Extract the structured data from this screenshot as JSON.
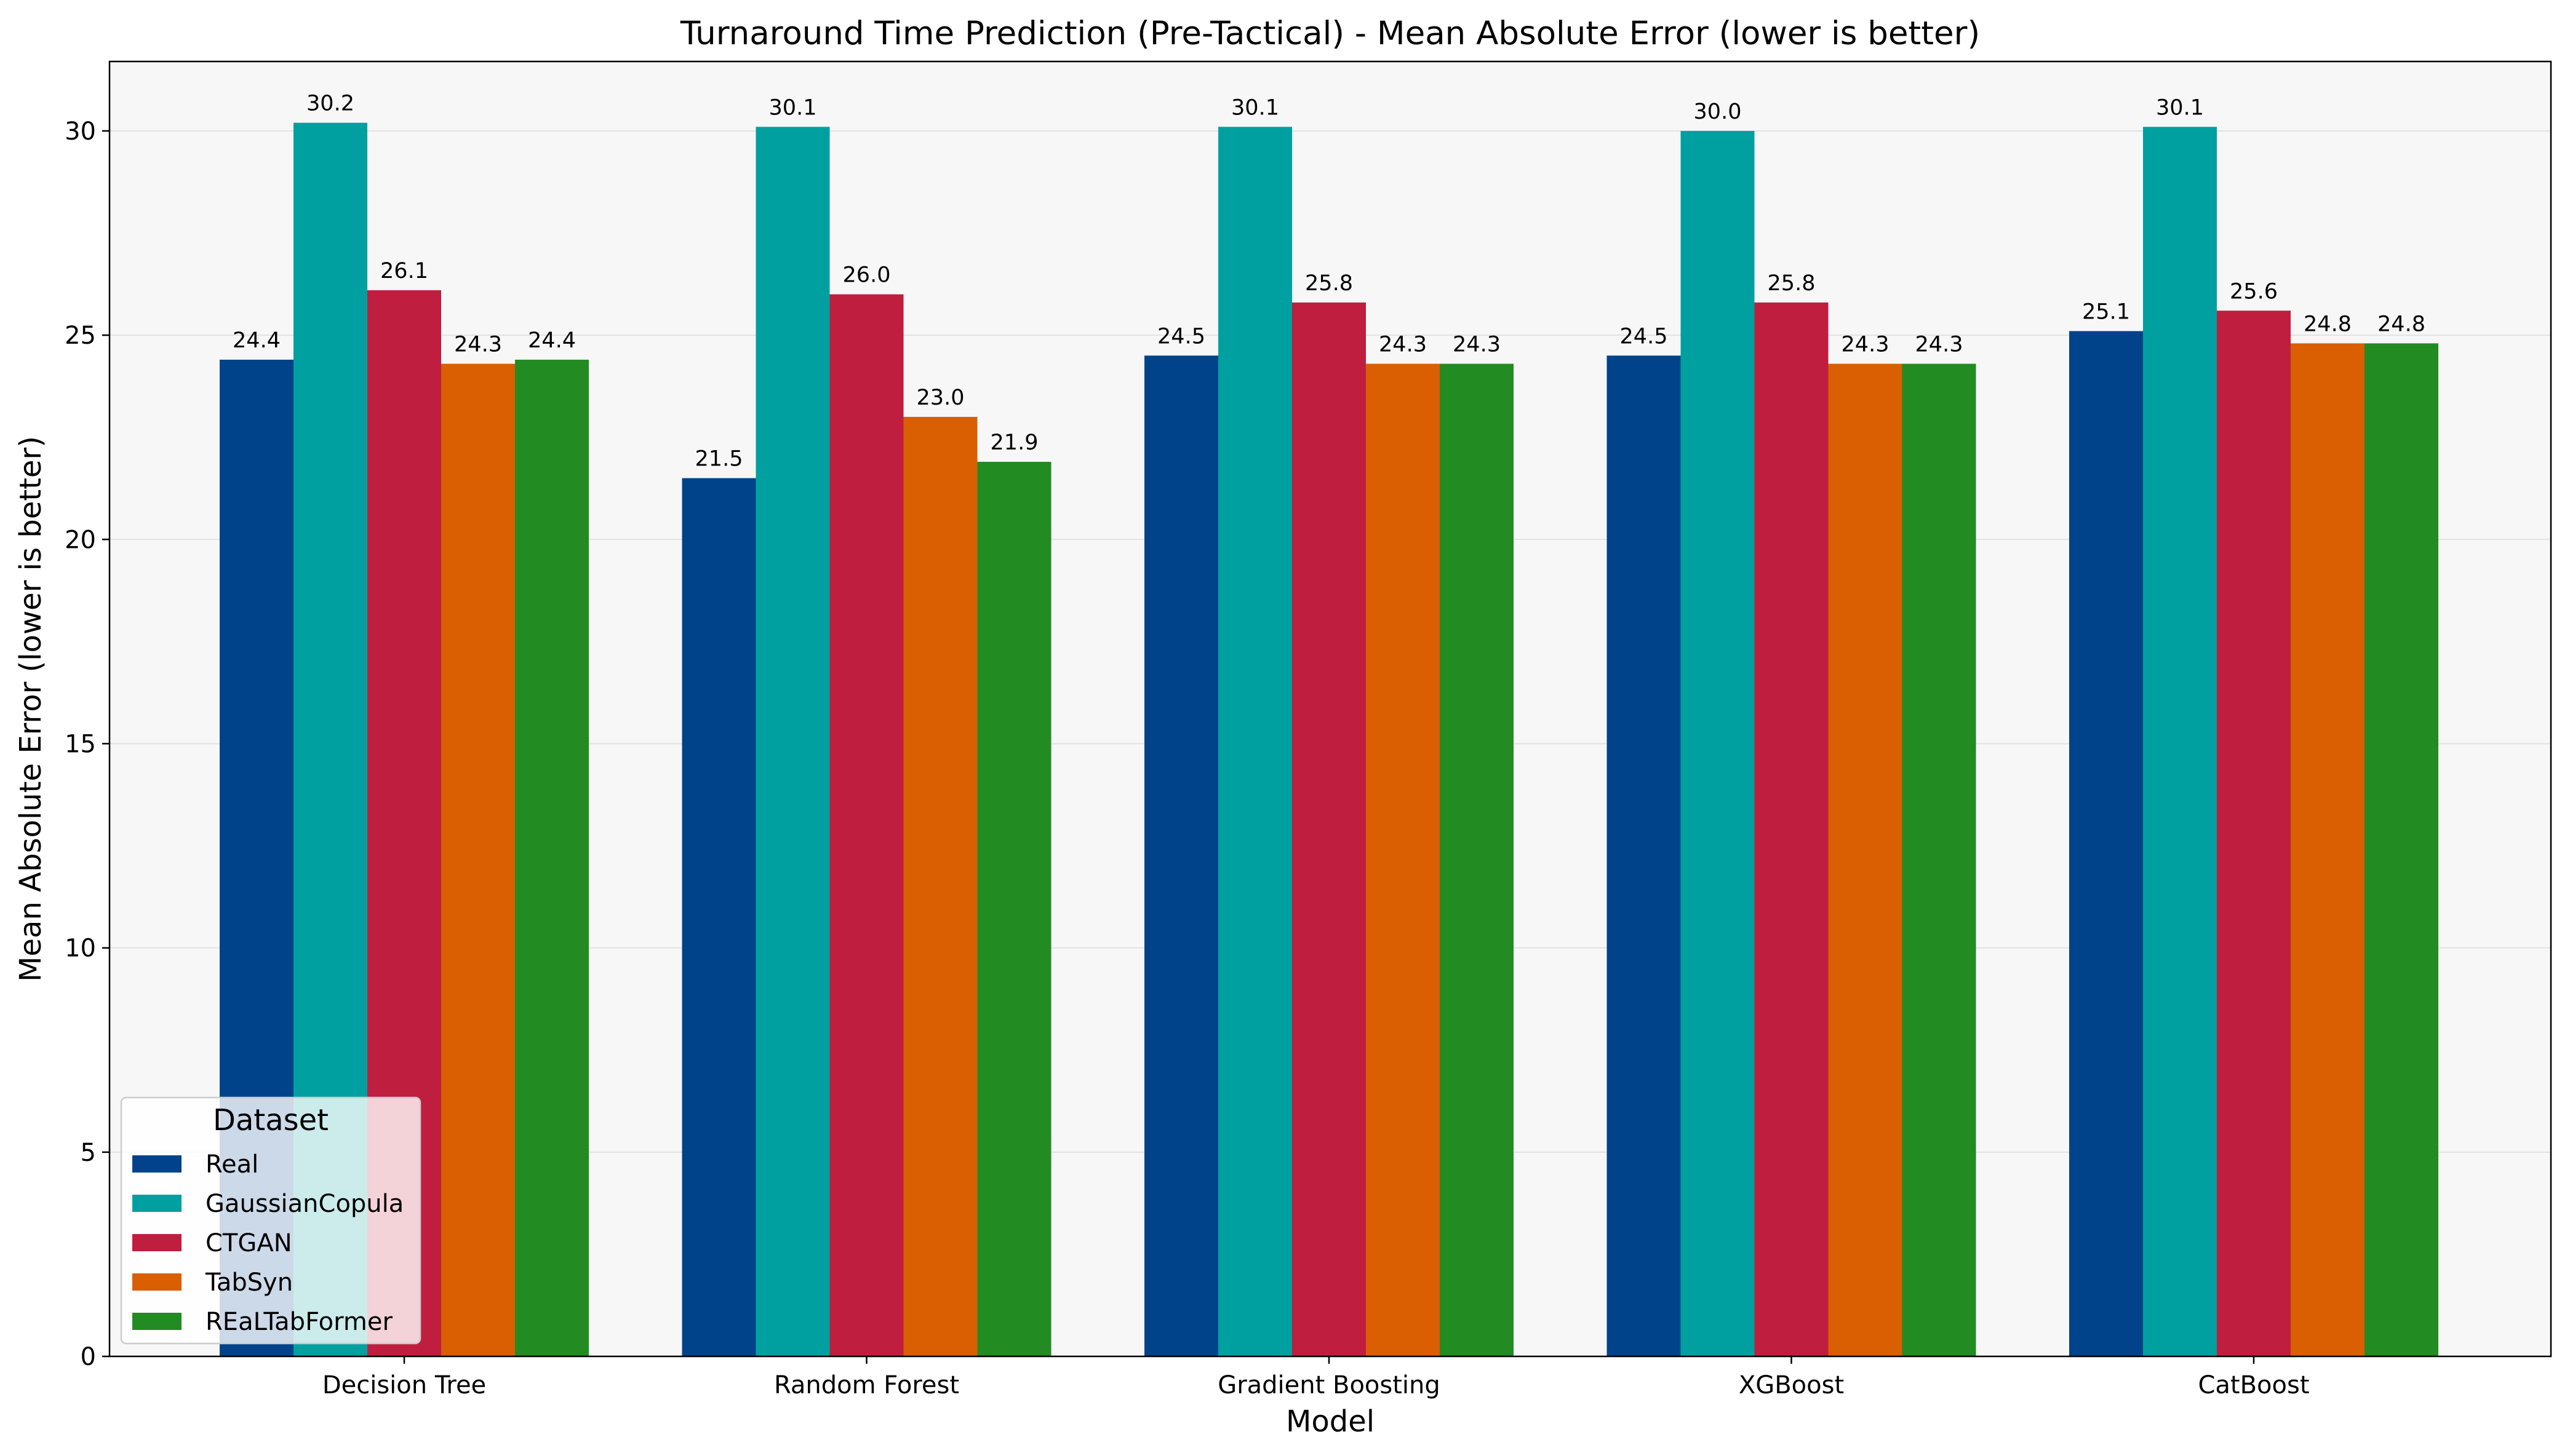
{
  "chart_data": {
    "type": "bar",
    "title": "Turnaround Time Prediction (Pre-Tactical) - Mean Absolute Error (lower is better)",
    "xlabel": "Model",
    "ylabel": "Mean Absolute Error (lower is better)",
    "categories": [
      "Decision Tree",
      "Random Forest",
      "Gradient Boosting",
      "XGBoost",
      "CatBoost"
    ],
    "series": [
      {
        "name": "Real",
        "values": [
          24.4,
          21.5,
          24.5,
          24.5,
          25.1
        ],
        "labels": [
          "24.4",
          "21.5",
          "24.5",
          "24.5",
          "25.1"
        ],
        "color": "#00438a"
      },
      {
        "name": "GaussianCopula",
        "values": [
          30.2,
          30.1,
          30.1,
          30.0,
          30.1
        ],
        "labels": [
          "30.2",
          "30.1",
          "30.1",
          "30.0",
          "30.1"
        ],
        "color": "#00a0a0"
      },
      {
        "name": "CTGAN",
        "values": [
          26.1,
          26.0,
          25.8,
          25.8,
          25.6
        ],
        "labels": [
          "26.1",
          "26.0",
          "25.8",
          "25.8",
          "25.6"
        ],
        "color": "#c01e3e"
      },
      {
        "name": "TabSyn",
        "values": [
          24.3,
          23.0,
          24.3,
          24.3,
          24.8
        ],
        "labels": [
          "24.3",
          "23.0",
          "24.3",
          "24.3",
          "24.8"
        ],
        "color": "#d95f02"
      },
      {
        "name": "REaLTabFormer",
        "values": [
          24.4,
          21.9,
          24.3,
          24.3,
          24.8
        ],
        "labels": [
          "24.4",
          "21.9",
          "24.3",
          "24.3",
          "24.8"
        ],
        "color": "#228b22"
      }
    ],
    "ylim": [
      0,
      31.7
    ],
    "yticks": [
      0,
      5,
      10,
      15,
      20,
      25,
      30
    ],
    "ytick_labels": [
      "0",
      "5",
      "10",
      "15",
      "20",
      "25",
      "30"
    ],
    "grid": "horizontal",
    "legend": {
      "title": "Dataset",
      "position": "lower-left"
    },
    "colors": {
      "plot_background": "#f7f7f7",
      "grid": "#e2e2e2"
    }
  }
}
